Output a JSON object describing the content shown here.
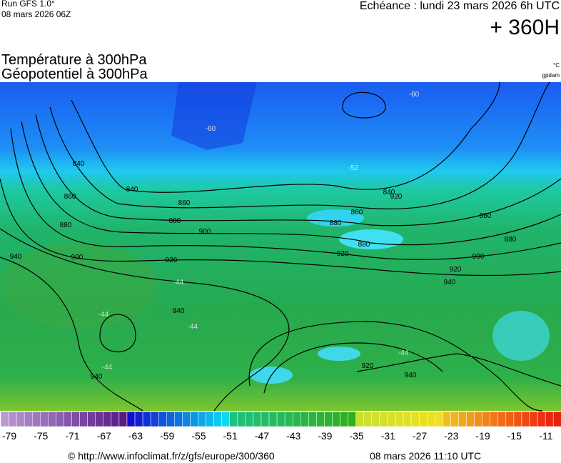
{
  "header": {
    "run": "Run GFS 1.0°",
    "date": "08 mars 2026 06Z",
    "echeance": "Echéance : lundi 23 mars 2026 6h UTC",
    "lead": "+ 360H",
    "title1": "Température à 300hPa",
    "title2": "Géopotentiel à 300hPa",
    "unit1": "°C",
    "unit2": "gpdam"
  },
  "map": {
    "contour_labels": [
      "840",
      "860",
      "880",
      "900",
      "920",
      "940",
      "840",
      "860",
      "880",
      "900",
      "920",
      "940",
      "940",
      "860",
      "880",
      "900",
      "920",
      "840",
      "880",
      "860",
      "940",
      "920",
      "940",
      "920",
      "880"
    ],
    "temperature_labels": [
      "-60",
      "-60",
      "-52",
      "-44",
      "-44",
      "-44",
      "-44",
      "-44"
    ]
  },
  "colorbar": {
    "labels": [
      -79,
      -75,
      -71,
      -67,
      -63,
      -59,
      -55,
      -51,
      -47,
      -43,
      -39,
      -35,
      -31,
      -27,
      -23,
      -19,
      -15,
      -11
    ]
  },
  "footer": {
    "url": "© http://www.infoclimat.fr/z/gfs/europe/300/360",
    "timestamp": "08 mars 2026 11:10 UTC"
  }
}
